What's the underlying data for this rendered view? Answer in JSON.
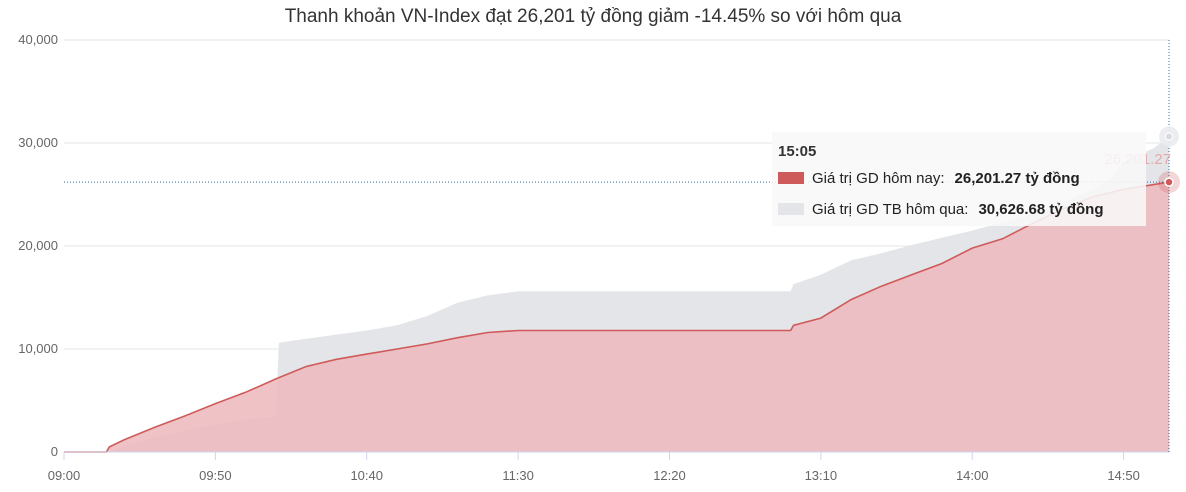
{
  "title": "Thanh khoản VN-Index đạt 26,201 tỷ đồng giảm -14.45% so với hôm qua",
  "colors": {
    "today_line": "#cf5a5a",
    "today_fill": "#ecb9bc",
    "yesterday_fill": "#e3e5e8",
    "crosshair": "#2b6fa8"
  },
  "chart_data": {
    "type": "area",
    "title": "Thanh khoản VN-Index đạt 26,201 tỷ đồng giảm -14.45% so với hôm qua",
    "xlabel": "",
    "ylabel": "",
    "x_ticks": [
      "09:00",
      "09:50",
      "10:40",
      "11:30",
      "12:20",
      "13:10",
      "14:00",
      "14:50"
    ],
    "y_ticks": [
      "0",
      "10,000",
      "20,000",
      "30,000",
      "40,000"
    ],
    "x_range": [
      "09:00",
      "15:05"
    ],
    "ylim": [
      0,
      40000
    ],
    "grid": true,
    "legend": "none",
    "series": [
      {
        "name": "Giá trị GD TB hôm qua",
        "points": [
          [
            "09:00",
            0
          ],
          [
            "09:15",
            0
          ],
          [
            "09:20",
            600
          ],
          [
            "09:30",
            1400
          ],
          [
            "09:40",
            2100
          ],
          [
            "09:50",
            2700
          ],
          [
            "10:00",
            3100
          ],
          [
            "10:05",
            3300
          ],
          [
            "10:10",
            3400
          ],
          [
            "10:11",
            10600
          ],
          [
            "10:20",
            11000
          ],
          [
            "10:30",
            11400
          ],
          [
            "10:40",
            11800
          ],
          [
            "10:50",
            12300
          ],
          [
            "11:00",
            13200
          ],
          [
            "11:10",
            14500
          ],
          [
            "11:20",
            15200
          ],
          [
            "11:30",
            15600
          ],
          [
            "12:50",
            15600
          ],
          [
            "13:00",
            15600
          ],
          [
            "13:01",
            16300
          ],
          [
            "13:10",
            17200
          ],
          [
            "13:20",
            18600
          ],
          [
            "13:30",
            19300
          ],
          [
            "13:40",
            20100
          ],
          [
            "13:50",
            20800
          ],
          [
            "14:00",
            21500
          ],
          [
            "14:10",
            22300
          ],
          [
            "14:20",
            23200
          ],
          [
            "14:30",
            24300
          ],
          [
            "14:40",
            25500
          ],
          [
            "14:45",
            26400
          ],
          [
            "14:50",
            28200
          ],
          [
            "15:00",
            29500
          ],
          [
            "15:05",
            30626.68
          ]
        ]
      },
      {
        "name": "Giá trị GD hôm nay",
        "points": [
          [
            "09:00",
            0
          ],
          [
            "09:14",
            0
          ],
          [
            "09:15",
            500
          ],
          [
            "09:20",
            1200
          ],
          [
            "09:30",
            2400
          ],
          [
            "09:40",
            3500
          ],
          [
            "09:50",
            4700
          ],
          [
            "10:00",
            5800
          ],
          [
            "10:10",
            7100
          ],
          [
            "10:20",
            8300
          ],
          [
            "10:30",
            9000
          ],
          [
            "10:40",
            9500
          ],
          [
            "10:50",
            10000
          ],
          [
            "11:00",
            10500
          ],
          [
            "11:10",
            11100
          ],
          [
            "11:20",
            11600
          ],
          [
            "11:30",
            11800
          ],
          [
            "12:50",
            11800
          ],
          [
            "13:00",
            11800
          ],
          [
            "13:01",
            12300
          ],
          [
            "13:10",
            13000
          ],
          [
            "13:20",
            14800
          ],
          [
            "13:30",
            16100
          ],
          [
            "13:40",
            17200
          ],
          [
            "13:50",
            18300
          ],
          [
            "14:00",
            19800
          ],
          [
            "14:10",
            20700
          ],
          [
            "14:20",
            22200
          ],
          [
            "14:30",
            23600
          ],
          [
            "14:40",
            24800
          ],
          [
            "14:50",
            25500
          ],
          [
            "15:05",
            26201.27
          ]
        ]
      }
    ],
    "value_label": "26,201.27",
    "tooltip": {
      "time": "15:05",
      "rows": [
        {
          "label": "Giá trị GD hôm nay:",
          "value": "26,201.27 tỷ đồng"
        },
        {
          "label": "Giá trị GD TB hôm qua:",
          "value": "30,626.68 tỷ đồng"
        }
      ]
    }
  }
}
